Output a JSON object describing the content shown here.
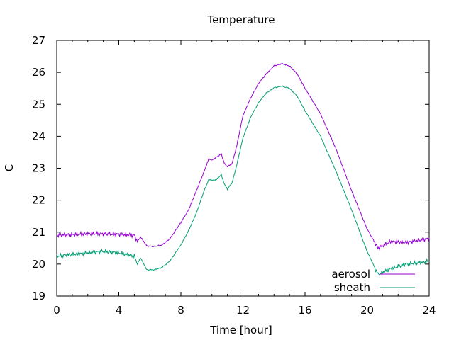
{
  "chart_data": {
    "type": "line",
    "title": "Temperature",
    "xlabel": "Time [hour]",
    "ylabel": "C",
    "xlim": [
      0,
      24
    ],
    "ylim": [
      19,
      27
    ],
    "xticks": [
      0,
      4,
      8,
      12,
      16,
      20,
      24
    ],
    "yticks": [
      19,
      20,
      21,
      22,
      23,
      24,
      25,
      26,
      27
    ],
    "grid": false,
    "legend_position": "bottom-right",
    "series": [
      {
        "name": "aerosol",
        "color": "#9400d3",
        "points": [
          [
            0,
            20.9
          ],
          [
            1,
            20.92
          ],
          [
            2,
            20.95
          ],
          [
            3,
            20.95
          ],
          [
            4,
            20.93
          ],
          [
            5,
            20.9
          ],
          [
            5.2,
            20.7
          ],
          [
            5.4,
            20.85
          ],
          [
            5.8,
            20.57
          ],
          [
            6.3,
            20.55
          ],
          [
            6.8,
            20.6
          ],
          [
            7.3,
            20.8
          ],
          [
            8,
            21.3
          ],
          [
            8.5,
            21.7
          ],
          [
            9,
            22.3
          ],
          [
            9.5,
            22.9
          ],
          [
            9.8,
            23.3
          ],
          [
            10,
            23.25
          ],
          [
            10.3,
            23.35
          ],
          [
            10.6,
            23.45
          ],
          [
            10.8,
            23.15
          ],
          [
            11,
            23.05
          ],
          [
            11.3,
            23.15
          ],
          [
            11.6,
            23.7
          ],
          [
            12,
            24.65
          ],
          [
            12.5,
            25.2
          ],
          [
            13,
            25.65
          ],
          [
            13.5,
            25.95
          ],
          [
            14,
            26.2
          ],
          [
            14.5,
            26.27
          ],
          [
            15,
            26.2
          ],
          [
            15.5,
            25.95
          ],
          [
            16,
            25.5
          ],
          [
            17,
            24.7
          ],
          [
            18,
            23.6
          ],
          [
            19,
            22.3
          ],
          [
            20,
            21.1
          ],
          [
            20.7,
            20.5
          ],
          [
            21.5,
            20.7
          ],
          [
            22.5,
            20.68
          ],
          [
            23.5,
            20.75
          ],
          [
            24,
            20.8
          ]
        ]
      },
      {
        "name": "sheath",
        "color": "#009e73",
        "points": [
          [
            0,
            20.25
          ],
          [
            1,
            20.3
          ],
          [
            2,
            20.35
          ],
          [
            3,
            20.4
          ],
          [
            4,
            20.35
          ],
          [
            5,
            20.25
          ],
          [
            5.2,
            20.0
          ],
          [
            5.4,
            20.2
          ],
          [
            5.8,
            19.82
          ],
          [
            6.3,
            19.82
          ],
          [
            6.8,
            19.9
          ],
          [
            7.3,
            20.1
          ],
          [
            8,
            20.6
          ],
          [
            8.5,
            21.05
          ],
          [
            9,
            21.6
          ],
          [
            9.5,
            22.3
          ],
          [
            9.8,
            22.65
          ],
          [
            10,
            22.62
          ],
          [
            10.3,
            22.65
          ],
          [
            10.6,
            22.8
          ],
          [
            10.8,
            22.5
          ],
          [
            11,
            22.35
          ],
          [
            11.3,
            22.55
          ],
          [
            11.6,
            23.1
          ],
          [
            12,
            23.95
          ],
          [
            12.5,
            24.6
          ],
          [
            13,
            25.05
          ],
          [
            13.5,
            25.35
          ],
          [
            14,
            25.52
          ],
          [
            14.5,
            25.57
          ],
          [
            15,
            25.5
          ],
          [
            15.5,
            25.25
          ],
          [
            16,
            24.8
          ],
          [
            17,
            24.0
          ],
          [
            18,
            22.9
          ],
          [
            19,
            21.7
          ],
          [
            20,
            20.4
          ],
          [
            20.7,
            19.68
          ],
          [
            21.5,
            19.85
          ],
          [
            22.5,
            20.0
          ],
          [
            23.5,
            20.05
          ],
          [
            24,
            20.1
          ]
        ]
      }
    ]
  }
}
